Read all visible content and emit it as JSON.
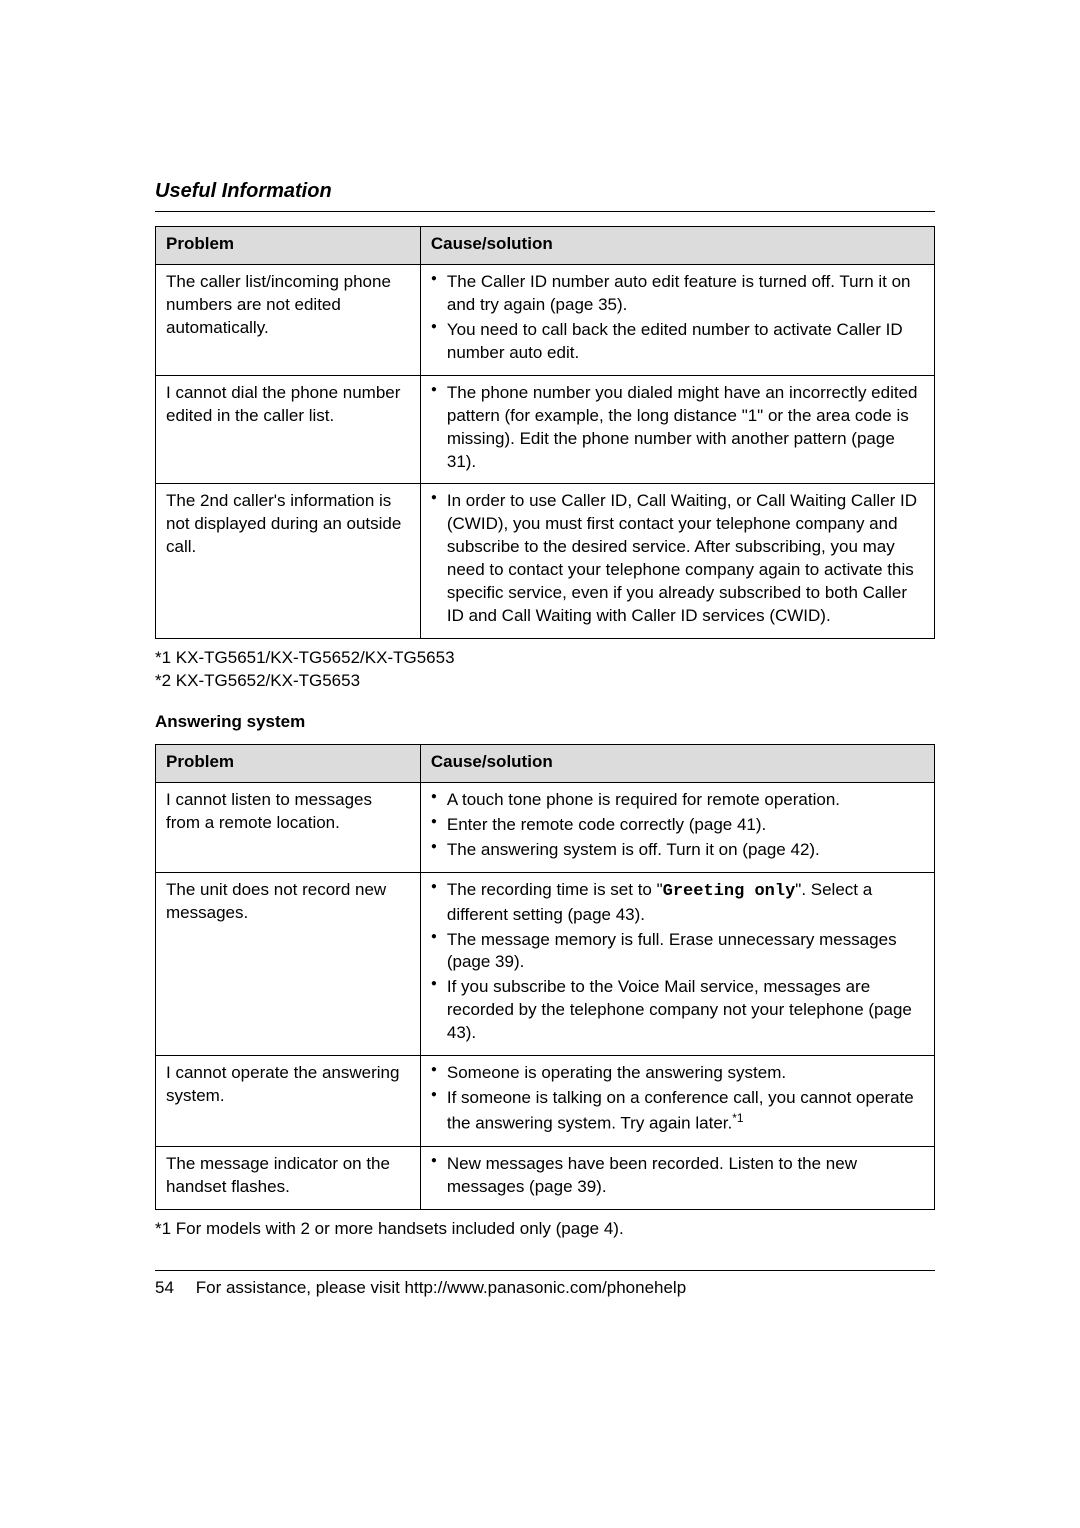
{
  "section_title": "Useful Information",
  "table1": {
    "header_problem": "Problem",
    "header_cause": "Cause/solution",
    "rows": [
      {
        "problem": "The caller list/incoming phone numbers are not edited automatically.",
        "bullets": [
          "The Caller ID number auto edit feature is turned off. Turn it on and try again (page 35).",
          "You need to call back the edited number to activate Caller ID number auto edit."
        ]
      },
      {
        "problem": "I cannot dial the phone number edited in the caller list.",
        "bullets": [
          "The phone number you dialed might have an incorrectly edited pattern (for example, the long distance \"1\" or the area code is missing). Edit the phone number with another pattern (page 31)."
        ]
      },
      {
        "problem": "The 2nd caller's information is not displayed during an outside call.",
        "bullets": [
          "In order to use Caller ID, Call Waiting, or Call Waiting Caller ID (CWID), you must first contact your telephone company and subscribe to the desired service. After subscribing, you may need to contact your telephone company again to activate this specific service, even if you already subscribed to both Caller ID and Call Waiting with Caller ID services (CWID)."
        ]
      }
    ]
  },
  "notes1_line1": "*1 KX-TG5651/KX-TG5652/KX-TG5653",
  "notes1_line2": "*2 KX-TG5652/KX-TG5653",
  "subheader": "Answering system",
  "table2": {
    "header_problem": "Problem",
    "header_cause": "Cause/solution",
    "row0": {
      "problem": "I cannot listen to messages from a remote location.",
      "bullets": [
        "A touch tone phone is required for remote operation.",
        "Enter the remote code correctly (page 41).",
        "The answering system is off. Turn it on (page 42)."
      ]
    },
    "row1": {
      "problem": "The unit does not record new messages.",
      "b0_pre": "The recording time is set to \"",
      "b0_mono": "Greeting only",
      "b0_post": "\". Select a different setting (page 43).",
      "b1": "The message memory is full. Erase unnecessary messages (page 39).",
      "b2": "If you subscribe to the Voice Mail service, messages are recorded by the telephone company not your telephone (page 43)."
    },
    "row2": {
      "problem": "I cannot operate the answering system.",
      "b0": "Someone is operating the answering system.",
      "b1_pre": "If someone is talking on a conference call, you cannot operate the answering system. Try again later.",
      "b1_sup": "*1"
    },
    "row3": {
      "problem": "The message indicator on the handset flashes.",
      "b0": "New messages have been recorded. Listen to the new messages (page 39)."
    }
  },
  "notes2": "*1 For models with 2 or more handsets included only (page 4).",
  "footer_page": "54",
  "footer_text": "For assistance, please visit http://www.panasonic.com/phonehelp"
}
